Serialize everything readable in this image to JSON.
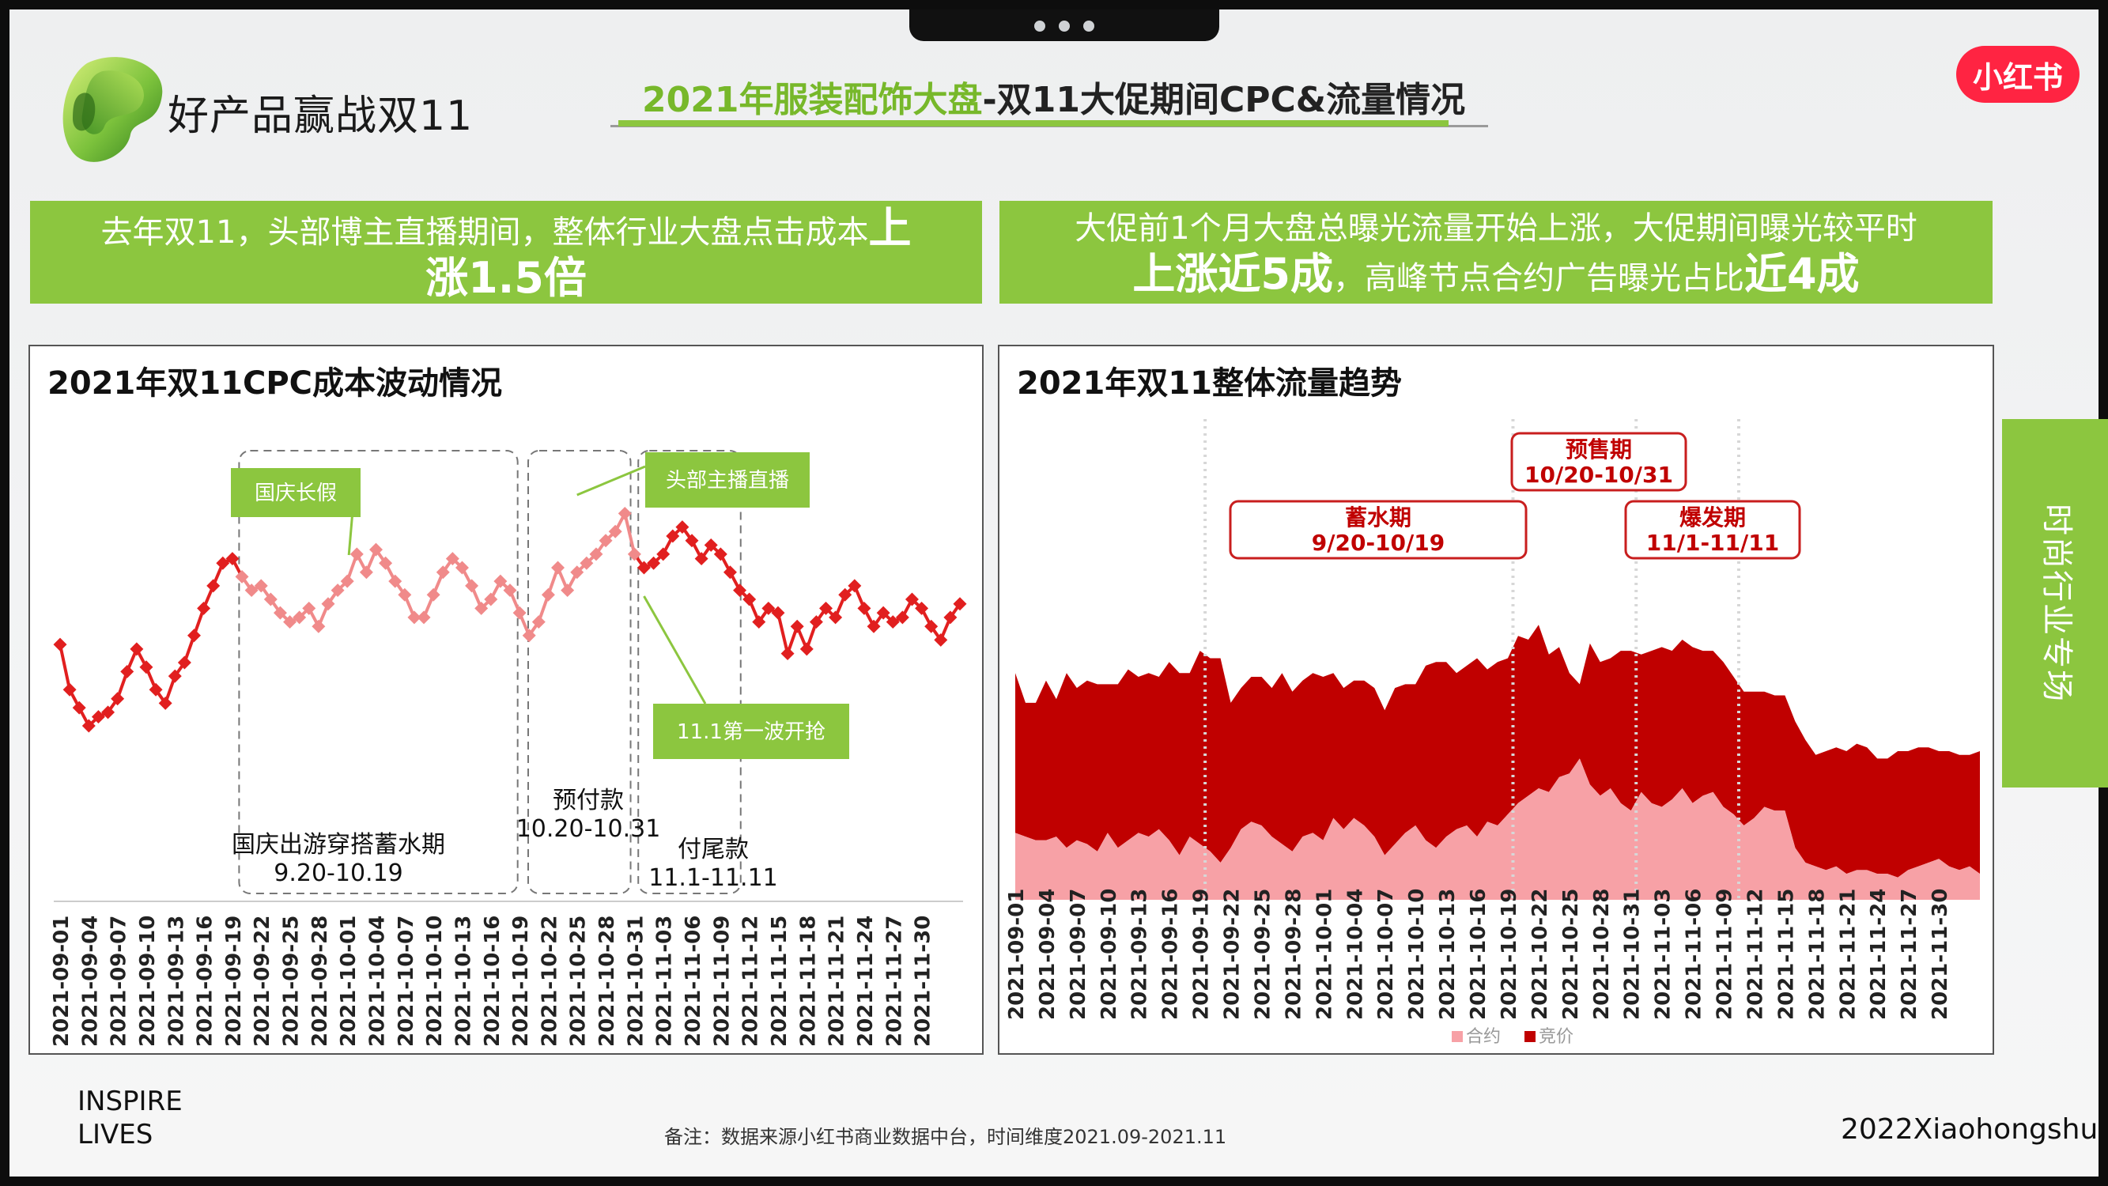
{
  "header": {
    "brand_title": "好产品赢战双11",
    "headline_green": "2021年服装配饰大盘",
    "headline_rest": "-双11大促期间CPC&流量情况",
    "badge": "小红书"
  },
  "banners": {
    "left": {
      "line1_prefix": "去年双11，头部博主直播期间，整体行业大盘点击成本",
      "line1_bold": "上",
      "line2_bold": "涨1.5倍"
    },
    "right": {
      "line1": "大促前1个月大盘总曝光流量开始上涨，大促期间曝光较平时",
      "line2_bold1": "上涨近5成",
      "line2_mid": "，高峰节点合约广告曝光占比",
      "line2_bold2": "近4成"
    }
  },
  "side_tab": "时尚行业专场",
  "footer": {
    "inspire_line1": "INSPIRE",
    "inspire_line2": "LIVES",
    "footnote": "备注：数据来源小红书商业数据中台，时间维度2021.09-2021.11",
    "right": "2022Xiaohongshu"
  },
  "colors": {
    "accent_green": "#8cc63f",
    "cpc_red": "#e11f1f",
    "cpc_pink": "#f08a8a",
    "bid_dark_red": "#c00000",
    "contract_pink": "#f7a1a6",
    "brand_red": "#ff2442"
  },
  "chart_data": [
    {
      "type": "line",
      "title": "2021年双11CPC成本波动情况",
      "x_start": "2021-09-01",
      "x_end": "2021-11-30",
      "x_tick_labels": [
        "2021-09-01",
        "2021-09-04",
        "2021-09-07",
        "2021-09-10",
        "2021-09-13",
        "2021-09-16",
        "2021-09-19",
        "2021-09-22",
        "2021-09-25",
        "2021-09-28",
        "2021-10-01",
        "2021-10-04",
        "2021-10-07",
        "2021-10-10",
        "2021-10-13",
        "2021-10-16",
        "2021-10-19",
        "2021-10-22",
        "2021-10-25",
        "2021-10-28",
        "2021-10-31",
        "2021-11-03",
        "2021-11-06",
        "2021-11-09",
        "2021-11-12",
        "2021-11-15",
        "2021-11-18",
        "2021-11-21",
        "2021-11-24",
        "2021-11-27",
        "2021-11-30"
      ],
      "y_axis_visible": false,
      "series": [
        {
          "values": [
            32,
            22,
            18,
            14,
            16,
            17,
            20,
            26,
            31,
            27,
            22,
            19,
            25,
            28,
            34,
            40,
            45,
            50,
            51,
            47,
            44,
            45,
            42,
            39,
            37,
            38,
            40,
            36,
            41,
            44,
            46,
            52,
            48,
            53,
            50,
            46,
            43,
            38,
            38,
            43,
            48,
            51,
            49,
            45,
            40,
            42,
            46,
            44,
            39,
            34,
            37,
            43,
            49,
            44,
            48,
            50,
            52,
            55,
            57,
            61,
            52,
            49,
            50,
            52,
            56,
            58,
            55,
            51,
            54,
            52,
            48,
            44,
            42,
            37,
            40,
            39,
            30,
            36,
            31,
            37,
            40,
            38,
            43,
            45,
            40,
            36,
            39,
            37,
            38,
            42,
            40,
            36,
            33,
            38,
            41
          ]
        }
      ],
      "series_colors_note": "red solid outside 2021-09-20..10-31, pink inside",
      "annotations": {
        "callouts": [
          "国庆长假",
          "头部主播直播",
          "11.1第一波开抢"
        ],
        "period_labels": [
          {
            "name": "国庆出游穿搭蓄水期",
            "range": "9.20-10.19"
          },
          {
            "name": "预付款",
            "range": "10.20-10.31"
          },
          {
            "name": "付尾款",
            "range": "11.1-11.11"
          }
        ]
      }
    },
    {
      "type": "area",
      "title": "2021年双11整体流量趋势",
      "x_start": "2021-09-01",
      "x_end": "2021-11-30",
      "x_tick_labels": [
        "2021-09-01",
        "2021-09-04",
        "2021-09-07",
        "2021-09-10",
        "2021-09-13",
        "2021-09-16",
        "2021-09-19",
        "2021-09-22",
        "2021-09-25",
        "2021-09-28",
        "2021-10-01",
        "2021-10-04",
        "2021-10-07",
        "2021-10-10",
        "2021-10-13",
        "2021-10-16",
        "2021-10-19",
        "2021-10-22",
        "2021-10-25",
        "2021-10-28",
        "2021-10-31",
        "2021-11-03",
        "2021-11-06",
        "2021-11-09",
        "2021-11-12",
        "2021-11-15",
        "2021-11-18",
        "2021-11-21",
        "2021-11-24",
        "2021-11-27",
        "2021-11-30"
      ],
      "stacked": true,
      "y_axis_visible": false,
      "series": [
        {
          "name": "合约",
          "values": [
            18,
            17,
            16,
            16,
            17,
            14,
            16,
            15,
            13,
            18,
            14,
            16,
            18,
            17,
            19,
            16,
            12,
            17,
            15,
            13,
            10,
            14,
            19,
            21,
            20,
            17,
            15,
            13,
            17,
            18,
            16,
            22,
            19,
            22,
            20,
            17,
            12,
            15,
            18,
            20,
            16,
            14,
            17,
            19,
            20,
            17,
            21,
            20,
            23,
            26,
            28,
            30,
            29,
            33,
            34,
            38,
            31,
            28,
            30,
            26,
            24,
            29,
            26,
            25,
            27,
            30,
            26,
            28,
            29,
            25,
            23,
            20,
            22,
            25,
            24,
            24,
            14,
            10,
            9,
            8,
            9,
            7,
            8,
            8,
            7,
            7,
            6,
            8,
            9,
            10,
            11,
            9,
            8,
            9,
            7
          ]
        },
        {
          "name": "竞价",
          "values": [
            43,
            36,
            37,
            43,
            37,
            47,
            41,
            44,
            45,
            40,
            44,
            46,
            42,
            44,
            41,
            48,
            49,
            44,
            52,
            52,
            55,
            39,
            38,
            39,
            40,
            40,
            46,
            43,
            42,
            43,
            44,
            39,
            38,
            37,
            39,
            40,
            39,
            42,
            40,
            38,
            47,
            50,
            47,
            42,
            43,
            48,
            41,
            44,
            42,
            45,
            42,
            44,
            37,
            35,
            27,
            20,
            38,
            36,
            35,
            41,
            43,
            37,
            41,
            43,
            40,
            40,
            42,
            39,
            38,
            39,
            37,
            36,
            34,
            31,
            31,
            31,
            34,
            33,
            30,
            32,
            32,
            33,
            34,
            33,
            31,
            31,
            34,
            32,
            32,
            31,
            29,
            31,
            31,
            30,
            33
          ]
        }
      ],
      "legend": [
        "合约",
        "竞价"
      ],
      "legend_placement": "bottom",
      "phase_labels": [
        {
          "name": "蓄水期",
          "range": "9/20-10/19"
        },
        {
          "name": "预售期",
          "range": "10/20-10/31"
        },
        {
          "name": "爆发期",
          "range": "11/1-11/11"
        }
      ]
    }
  ]
}
